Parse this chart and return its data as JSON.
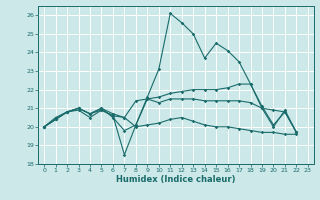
{
  "xlabel": "Humidex (Indice chaleur)",
  "xlim": [
    -0.5,
    23.5
  ],
  "ylim": [
    18,
    26.5
  ],
  "yticks": [
    18,
    19,
    20,
    21,
    22,
    23,
    24,
    25,
    26
  ],
  "xticks": [
    0,
    1,
    2,
    3,
    4,
    5,
    6,
    7,
    8,
    9,
    10,
    11,
    12,
    13,
    14,
    15,
    16,
    17,
    18,
    19,
    20,
    21,
    22,
    23
  ],
  "bg_color": "#cce8e8",
  "grid_color": "#ffffff",
  "line_color": "#1a6b6b",
  "line1_x": [
    0,
    1,
    2,
    3,
    4,
    5,
    6,
    7,
    8,
    9,
    10,
    11,
    12,
    13,
    14,
    15,
    16,
    17,
    18,
    19,
    20,
    21,
    22
  ],
  "line1_y": [
    20.0,
    20.5,
    20.8,
    20.9,
    20.5,
    20.9,
    20.6,
    18.5,
    20.1,
    21.6,
    23.1,
    26.1,
    25.6,
    25.0,
    23.7,
    24.5,
    24.1,
    23.5,
    22.3,
    21.0,
    20.0,
    20.9,
    19.7
  ],
  "line2_x": [
    0,
    1,
    2,
    3,
    4,
    5,
    6,
    7,
    8,
    9,
    10,
    11,
    12,
    13,
    14,
    15,
    16,
    17,
    18,
    19,
    20,
    21,
    22
  ],
  "line2_y": [
    20.0,
    20.4,
    20.8,
    21.0,
    20.7,
    21.0,
    20.7,
    20.5,
    21.4,
    21.5,
    21.6,
    21.8,
    21.9,
    22.0,
    22.0,
    22.0,
    22.1,
    22.3,
    22.3,
    21.1,
    20.1,
    20.8,
    19.7
  ],
  "line3_x": [
    0,
    1,
    2,
    3,
    4,
    5,
    6,
    7,
    8,
    9,
    10,
    11,
    12,
    13,
    14,
    15,
    16,
    17,
    18,
    19,
    20,
    21,
    22
  ],
  "line3_y": [
    20.0,
    20.4,
    20.8,
    21.0,
    20.7,
    20.9,
    20.6,
    20.5,
    20.0,
    20.1,
    20.2,
    20.4,
    20.5,
    20.3,
    20.1,
    20.0,
    20.0,
    19.9,
    19.8,
    19.7,
    19.7,
    19.6,
    19.6
  ],
  "line4_x": [
    0,
    1,
    2,
    3,
    4,
    5,
    6,
    7,
    8,
    9,
    10,
    11,
    12,
    13,
    14,
    15,
    16,
    17,
    18,
    19,
    20,
    21,
    22
  ],
  "line4_y": [
    20.0,
    20.4,
    20.8,
    21.0,
    20.7,
    21.0,
    20.5,
    19.8,
    20.1,
    21.5,
    21.3,
    21.5,
    21.5,
    21.5,
    21.4,
    21.4,
    21.4,
    21.4,
    21.3,
    21.0,
    20.9,
    20.8,
    19.7
  ]
}
